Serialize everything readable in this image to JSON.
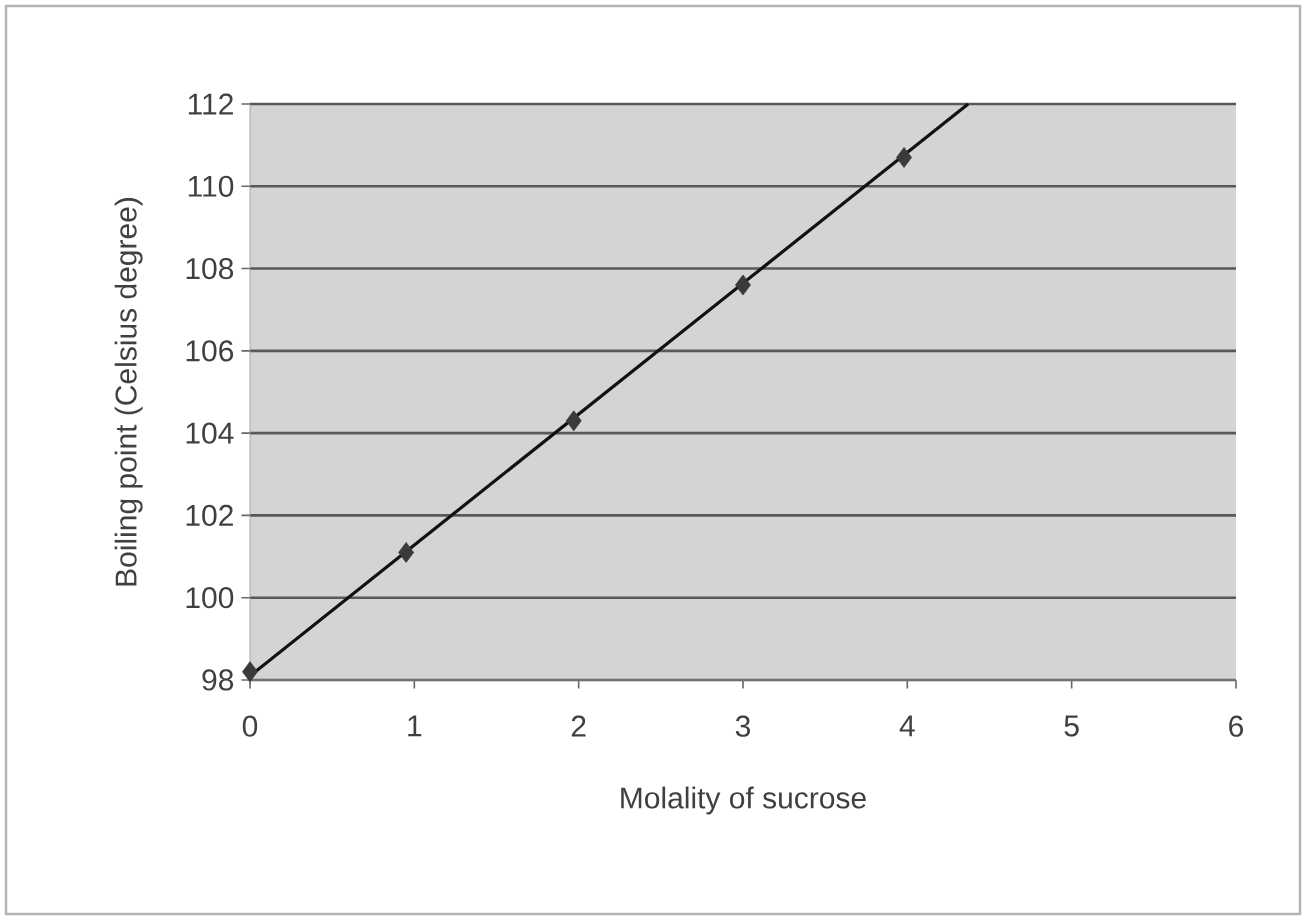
{
  "chart_data": {
    "type": "scatter",
    "xlabel": "Molality of sucrose",
    "ylabel": "Boiling point (Celsius degree)",
    "xlim": [
      0,
      6
    ],
    "xticks": [
      0,
      1,
      2,
      3,
      4,
      5,
      6
    ],
    "ylim": [
      98,
      112
    ],
    "yticks": [
      98,
      100,
      102,
      104,
      106,
      108,
      110,
      112
    ],
    "grid": "y",
    "series": [
      {
        "marker": "diamond",
        "color": "#3a3a3a",
        "x": [
          0,
          0.95,
          1.97,
          3,
          3.98
        ],
        "values": [
          98.2,
          101.1,
          104.3,
          107.6,
          110.7
        ]
      },
      {
        "type": "line",
        "marker": "none",
        "color": "#111111",
        "x": [
          0,
          4.37
        ],
        "values": [
          98.1,
          112
        ]
      }
    ]
  }
}
